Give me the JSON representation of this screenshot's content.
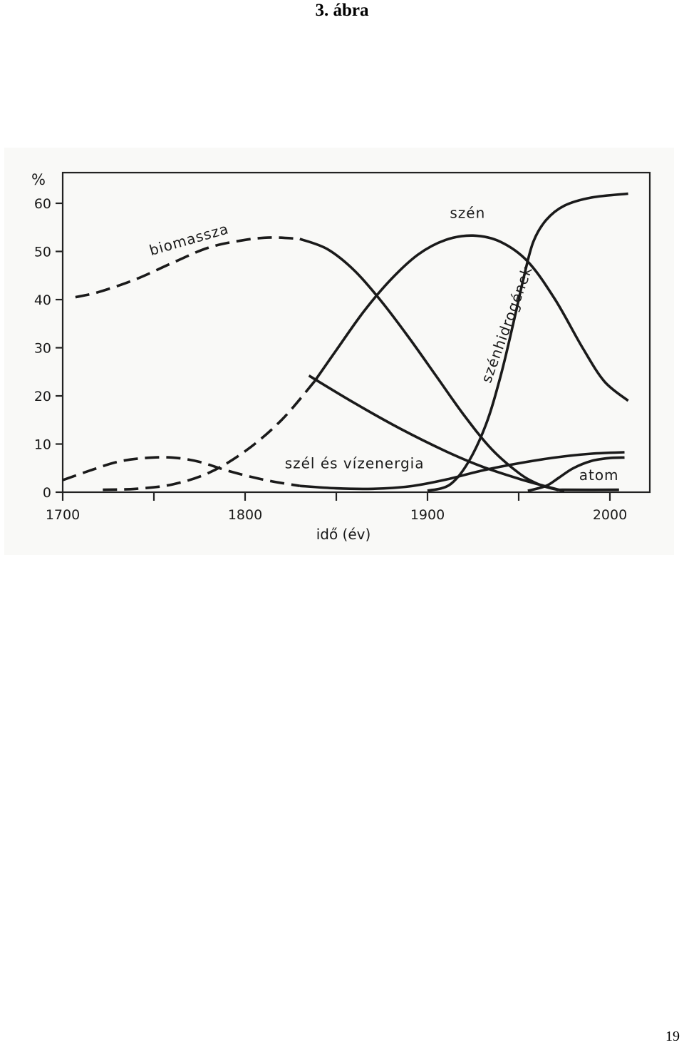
{
  "page": {
    "title": "3.  ábra",
    "page_number": "19"
  },
  "chart_data": {
    "type": "line",
    "title": "",
    "xlabel": "idő (év)",
    "ylabel": "%",
    "xlim": [
      1700,
      2025
    ],
    "ylim": [
      0,
      67
    ],
    "x_ticks": [
      1700,
      1750,
      1800,
      1850,
      1900,
      1950,
      2000
    ],
    "x_tick_labels": [
      "1700",
      "1800",
      "1900",
      "2000"
    ],
    "y_ticks": [
      0,
      10,
      20,
      30,
      40,
      50,
      60
    ],
    "y_tick_labels": [
      "0",
      "10",
      "20",
      "30",
      "40",
      "50",
      "60"
    ],
    "grid": false,
    "legend": "none (curves labelled directly)",
    "series": [
      {
        "name": "biomassza",
        "segments": [
          {
            "style": "dashed",
            "points": [
              [
                1707,
                40.5
              ],
              [
                1720,
                41.6
              ],
              [
                1740,
                44.2
              ],
              [
                1760,
                47.6
              ],
              [
                1780,
                50.8
              ],
              [
                1800,
                52.4
              ],
              [
                1815,
                52.9
              ],
              [
                1830,
                52.6
              ]
            ]
          },
          {
            "style": "solid",
            "points": [
              [
                1830,
                52.6
              ],
              [
                1845,
                50.5
              ],
              [
                1860,
                46.0
              ],
              [
                1875,
                39.5
              ],
              [
                1890,
                32.0
              ],
              [
                1905,
                24.0
              ],
              [
                1920,
                16.0
              ],
              [
                1935,
                9.0
              ],
              [
                1950,
                4.0
              ],
              [
                1960,
                1.8
              ],
              [
                1970,
                0.6
              ],
              [
                1975,
                0.5
              ],
              [
                2005,
                0.5
              ]
            ]
          }
        ]
      },
      {
        "name": "szén",
        "segments": [
          {
            "style": "dashed",
            "points": [
              [
                1722,
                0.5
              ],
              [
                1740,
                0.7
              ],
              [
                1760,
                1.6
              ],
              [
                1780,
                4.0
              ],
              [
                1800,
                8.5
              ],
              [
                1820,
                15.0
              ],
              [
                1838,
                23.0
              ]
            ]
          },
          {
            "style": "solid",
            "points": [
              [
                1838,
                23.0
              ],
              [
                1850,
                29.5
              ],
              [
                1865,
                37.5
              ],
              [
                1880,
                44.2
              ],
              [
                1895,
                49.4
              ],
              [
                1910,
                52.4
              ],
              [
                1925,
                53.3
              ],
              [
                1940,
                52.0
              ],
              [
                1955,
                47.9
              ],
              [
                1970,
                40.0
              ],
              [
                1985,
                30.0
              ],
              [
                1997,
                23.0
              ],
              [
                2010,
                19.0
              ]
            ]
          }
        ]
      },
      {
        "name": "szél és vízenergia",
        "segments": [
          {
            "style": "dashed",
            "points": [
              [
                1700,
                2.5
              ],
              [
                1715,
                4.5
              ],
              [
                1730,
                6.3
              ],
              [
                1745,
                7.1
              ],
              [
                1760,
                7.2
              ],
              [
                1775,
                6.3
              ],
              [
                1790,
                4.5
              ],
              [
                1810,
                2.6
              ],
              [
                1830,
                1.3
              ]
            ]
          },
          {
            "style": "solid",
            "points": [
              [
                1830,
                1.3
              ],
              [
                1850,
                0.8
              ],
              [
                1870,
                0.7
              ],
              [
                1890,
                1.2
              ],
              [
                1910,
                2.6
              ],
              [
                1930,
                4.5
              ],
              [
                1950,
                6.0
              ],
              [
                1970,
                7.2
              ],
              [
                1990,
                8.0
              ],
              [
                2008,
                8.3
              ]
            ]
          }
        ]
      },
      {
        "name": "szénhidrogének",
        "segments": [
          {
            "style": "solid",
            "points": [
              [
                1900,
                0.3
              ],
              [
                1912,
                1.5
              ],
              [
                1922,
                6.0
              ],
              [
                1932,
                14.0
              ],
              [
                1940,
                24.0
              ],
              [
                1947,
                35.0
              ],
              [
                1953,
                45.0
              ],
              [
                1958,
                52.0
              ],
              [
                1965,
                56.5
              ],
              [
                1975,
                59.5
              ],
              [
                1990,
                61.2
              ],
              [
                2010,
                62.0
              ]
            ]
          }
        ]
      },
      {
        "name": "atom",
        "segments": [
          {
            "style": "solid",
            "points": [
              [
                1955,
                0.3
              ],
              [
                1965,
                1.3
              ],
              [
                1972,
                3.0
              ],
              [
                1980,
                5.0
              ],
              [
                1990,
                6.5
              ],
              [
                2000,
                7.1
              ],
              [
                2008,
                7.2
              ]
            ]
          }
        ]
      },
      {
        "name": "",
        "segments": [
          {
            "style": "solid",
            "points": [
              [
                1835,
                24.2
              ],
              [
                1860,
                18.5
              ],
              [
                1885,
                13.2
              ],
              [
                1910,
                8.5
              ],
              [
                1930,
                5.3
              ],
              [
                1950,
                2.8
              ],
              [
                1965,
                1.2
              ],
              [
                1975,
                0.2
              ]
            ]
          }
        ]
      }
    ],
    "annotations": [
      {
        "text": "biomassza",
        "x": 1770,
        "y": 51.5
      },
      {
        "text": "szén",
        "x": 1922,
        "y": 57
      },
      {
        "text": "szénhidrogének",
        "x": 1946,
        "y": 34.5
      },
      {
        "text": "szél és vízenergia",
        "x": 1860,
        "y": 5
      },
      {
        "text": "atom",
        "x": 1994,
        "y": 2.5
      }
    ]
  }
}
